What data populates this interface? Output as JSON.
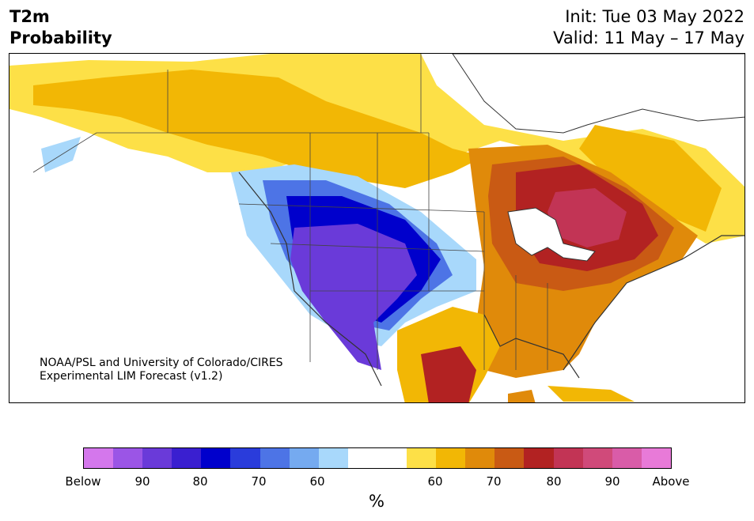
{
  "header": {
    "title_line1": "T2m",
    "title_line2": "Probability",
    "init": "Init: Tue 03 May 2022",
    "valid": "Valid: 11 May – 17 May"
  },
  "credit": {
    "line1": "NOAA/PSL and University of Colorado/CIRES",
    "line2": "Experimental LIM Forecast (v1.2)"
  },
  "colorbar": {
    "colors": [
      "#d477ec",
      "#9b55e6",
      "#6a3ad9",
      "#3a1fd0",
      "#0000cc",
      "#2a3cdb",
      "#4d74e6",
      "#75aaf0",
      "#a8d8fb",
      "#ffffff",
      "#ffffff",
      "#fde047",
      "#f2b705",
      "#e08a0a",
      "#c95a14",
      "#b22222",
      "#c23455",
      "#d04a7a",
      "#d95ca8",
      "#e87ad8"
    ],
    "tick_labels": [
      "Below",
      "90",
      "80",
      "70",
      "60",
      "60",
      "70",
      "80",
      "90",
      "Above"
    ],
    "unit": "%"
  },
  "map_colors": {
    "below_strong": "#6a3ad9",
    "below_blue": "#0000cc",
    "below_light": "#a8d8fb",
    "above_yellow": "#fde047",
    "above_gold": "#f2b705",
    "above_orange": "#e08a0a",
    "above_rust": "#c95a14",
    "above_red": "#b22222",
    "above_rose": "#c23455"
  }
}
